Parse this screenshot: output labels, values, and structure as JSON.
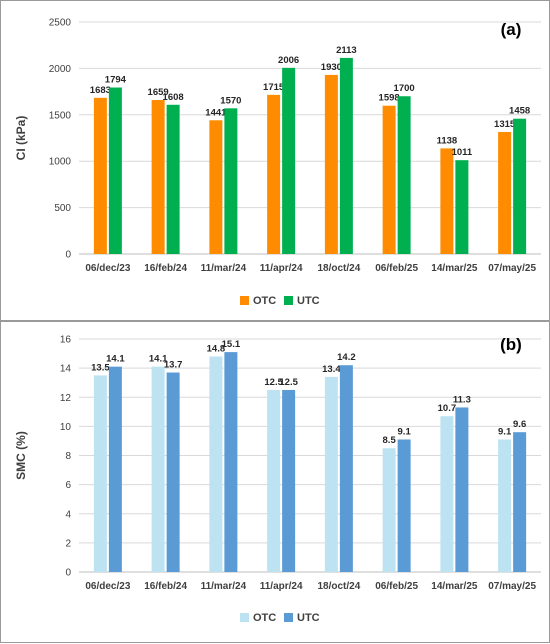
{
  "chart_data": [
    {
      "type": "bar",
      "panel_label": "(a)",
      "ylabel": "CI (kPa)",
      "ylim": [
        0,
        2500
      ],
      "yticks": [
        0,
        500,
        1000,
        1500,
        2000,
        2500
      ],
      "grid": true,
      "legend": "bottom",
      "categories": [
        "06/dec/23",
        "16/feb/24",
        "11/mar/24",
        "11/apr/24",
        "18/oct/24",
        "06/feb/25",
        "14/mar/25",
        "07/may/25"
      ],
      "series": [
        {
          "name": "OTC",
          "color": "#ff8c00",
          "values": [
            1683,
            1659,
            1441,
            1715,
            1930,
            1598,
            1138,
            1315
          ]
        },
        {
          "name": "UTC",
          "color": "#00b050",
          "values": [
            1794,
            1608,
            1570,
            2006,
            2113,
            1700,
            1011,
            1458
          ]
        }
      ]
    },
    {
      "type": "bar",
      "panel_label": "(b)",
      "ylabel": "SMC (%)",
      "ylim": [
        0,
        16
      ],
      "yticks": [
        0,
        2,
        4,
        6,
        8,
        10,
        12,
        14,
        16
      ],
      "grid": true,
      "legend": "bottom",
      "categories": [
        "06/dec/23",
        "16/feb/24",
        "11/mar/24",
        "11/apr/24",
        "18/oct/24",
        "06/feb/25",
        "14/mar/25",
        "07/may/25"
      ],
      "series": [
        {
          "name": "OTC",
          "color": "#bde3f3",
          "values": [
            13.5,
            14.1,
            14.8,
            12.5,
            13.4,
            8.5,
            10.7,
            9.1
          ]
        },
        {
          "name": "UTC",
          "color": "#5b9bd5",
          "values": [
            14.1,
            13.7,
            15.1,
            12.5,
            14.2,
            9.1,
            11.3,
            9.6
          ]
        }
      ]
    }
  ]
}
